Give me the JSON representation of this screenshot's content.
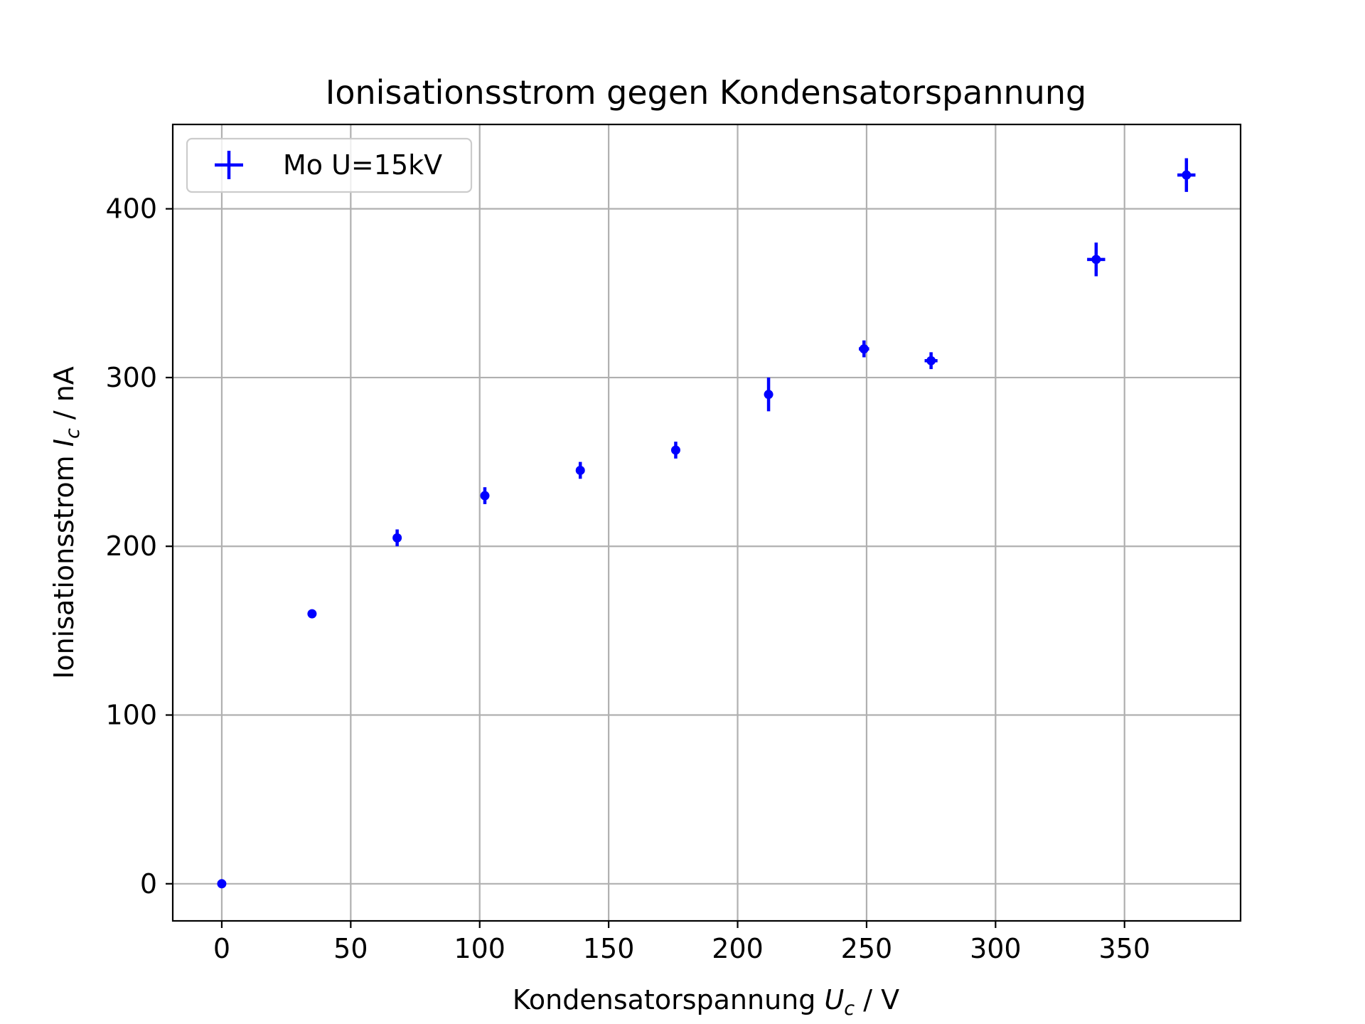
{
  "chart_data": {
    "type": "scatter",
    "title": "Ionisationsstrom gegen Kondensatorspannung",
    "xlabel": {
      "prefix": "Kondensatorspannung ",
      "sym": "U",
      "sub": "c",
      "suffix": " / V"
    },
    "ylabel": {
      "prefix": "Ionisationsstrom ",
      "sym": "I",
      "sub": "c",
      "suffix": " / nA"
    },
    "xlim": [
      -19,
      395
    ],
    "ylim": [
      -22,
      450
    ],
    "xticks": [
      0,
      50,
      100,
      150,
      200,
      250,
      300,
      350
    ],
    "yticks": [
      0,
      100,
      200,
      300,
      400
    ],
    "grid": true,
    "legend_position": "top-left",
    "color": "#0000ff",
    "series": [
      {
        "name": "Mo U=15kV",
        "points": [
          {
            "x": 0,
            "y": 0,
            "xerr": 0,
            "yerr": 0
          },
          {
            "x": 35,
            "y": 160,
            "xerr": 0,
            "yerr": 0
          },
          {
            "x": 68,
            "y": 205,
            "xerr": 0.5,
            "yerr": 5
          },
          {
            "x": 102,
            "y": 230,
            "xerr": 1,
            "yerr": 5
          },
          {
            "x": 139,
            "y": 245,
            "xerr": 1,
            "yerr": 5
          },
          {
            "x": 176,
            "y": 257,
            "xerr": 1.5,
            "yerr": 5
          },
          {
            "x": 212,
            "y": 290,
            "xerr": 1.5,
            "yerr": 10
          },
          {
            "x": 249,
            "y": 317,
            "xerr": 2,
            "yerr": 5
          },
          {
            "x": 275,
            "y": 310,
            "xerr": 2.5,
            "yerr": 5
          },
          {
            "x": 339,
            "y": 370,
            "xerr": 3.5,
            "yerr": 10
          },
          {
            "x": 374,
            "y": 420,
            "xerr": 3.5,
            "yerr": 10
          }
        ]
      }
    ]
  }
}
